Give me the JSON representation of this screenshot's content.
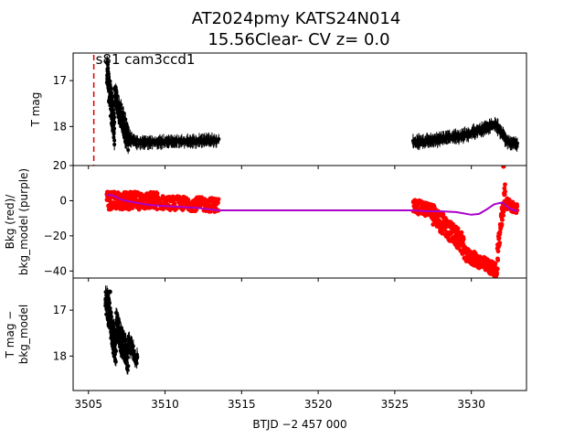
{
  "title_line1": "AT2024pmy  KATS24N014",
  "title_line2": "15.56Clear- CV z= 0.0",
  "chart_data": {
    "type": "scatter",
    "xlabel": "BTJD −2 457 000",
    "xlim": [
      3504.0,
      3533.6
    ],
    "x_ticks": [
      3505,
      3510,
      3515,
      3520,
      3525,
      3530
    ],
    "x_tick_labels": [
      "3505",
      "3510",
      "3515",
      "3520",
      "3525",
      "3530"
    ],
    "marker_line_x": 3505.35,
    "annotation": "s81 cam3ccd1",
    "panels": [
      {
        "id": "tmag",
        "ylabel": "T mag",
        "ylim": [
          16.4,
          18.85
        ],
        "y_inverted": true,
        "y_ticks": [
          17,
          18
        ],
        "y_tick_labels": [
          "17",
          "18"
        ],
        "colors": {
          "points": "#000000"
        },
        "segments": [
          {
            "x0": 3506.2,
            "x1": 3506.7,
            "y0": 16.75,
            "y1": 18.15,
            "spread": 0.35,
            "n": 120
          },
          {
            "x0": 3506.7,
            "x1": 3507.6,
            "y0": 17.3,
            "y1": 18.3,
            "spread": 0.25,
            "n": 100
          },
          {
            "x0": 3507.6,
            "x1": 3508.2,
            "y0": 18.25,
            "y1": 18.35,
            "spread": 0.05,
            "n": 40
          },
          {
            "x0": 3508.2,
            "x1": 3513.5,
            "y0": 18.35,
            "y1": 18.3,
            "spread": 0.03,
            "n": 160
          },
          {
            "x0": 3526.2,
            "x1": 3529.5,
            "y0": 18.35,
            "y1": 18.2,
            "spread": 0.04,
            "n": 130
          },
          {
            "x0": 3529.5,
            "x1": 3531.6,
            "y0": 18.2,
            "y1": 17.95,
            "spread": 0.04,
            "n": 90
          },
          {
            "x0": 3531.6,
            "x1": 3532.2,
            "y0": 17.95,
            "y1": 18.25,
            "spread": 0.06,
            "n": 30
          },
          {
            "x0": 3532.2,
            "x1": 3533.0,
            "y0": 18.3,
            "y1": 18.4,
            "spread": 0.04,
            "n": 30
          }
        ]
      },
      {
        "id": "bkg",
        "ylabel_line1": "Bkg (red)/",
        "ylabel_line2": "bkg_model (purple)",
        "ylim": [
          -44,
          20
        ],
        "y_inverted": false,
        "y_ticks": [
          20,
          0,
          -20,
          -40
        ],
        "y_tick_labels": [
          "20",
          "0",
          "−20",
          "−40"
        ],
        "colors": {
          "points": "#ff0000",
          "model": "#aa00cc"
        },
        "segments": [
          {
            "x0": 3506.2,
            "x1": 3509.5,
            "y0": 0.0,
            "y1": 0.0,
            "spread": 5.0,
            "n": 260
          },
          {
            "x0": 3509.5,
            "x1": 3513.5,
            "y0": -1.0,
            "y1": -2.5,
            "spread": 4.0,
            "n": 200
          },
          {
            "x0": 3526.2,
            "x1": 3527.5,
            "y0": -3.0,
            "y1": -6.0,
            "spread": 4.0,
            "n": 90
          },
          {
            "x0": 3527.5,
            "x1": 3529.5,
            "y0": -8.0,
            "y1": -25.0,
            "spread": 6.0,
            "n": 140
          },
          {
            "x0": 3529.5,
            "x1": 3531.7,
            "y0": -30.0,
            "y1": -40.0,
            "spread": 4.0,
            "n": 140
          },
          {
            "x0": 3531.7,
            "x1": 3532.2,
            "y0": -30.0,
            "y1": 5.0,
            "spread": 6.0,
            "n": 50
          },
          {
            "x0": 3532.2,
            "x1": 3533.0,
            "y0": -1.0,
            "y1": -5.0,
            "spread": 3.0,
            "n": 50
          }
        ],
        "outliers": [
          {
            "x": 3532.1,
            "y": 19.5
          }
        ],
        "model": {
          "x": [
            3506.2,
            3506.6,
            3507.2,
            3508.0,
            3509.0,
            3510.0,
            3511.0,
            3512.0,
            3513.0,
            3513.5,
            3526.2,
            3527.0,
            3528.0,
            3529.0,
            3530.0,
            3530.5,
            3531.0,
            3531.5,
            3532.0,
            3532.5,
            3533.0
          ],
          "y": [
            3.5,
            3.0,
            0.5,
            -1.0,
            -2.5,
            -3.0,
            -3.5,
            -4.0,
            -5.0,
            -5.5,
            -5.5,
            -6.0,
            -6.0,
            -6.5,
            -8.0,
            -7.5,
            -5.0,
            -2.0,
            -1.0,
            -4.5,
            -6.0
          ]
        }
      },
      {
        "id": "diff",
        "ylabel_line1": "T mag −",
        "ylabel_line2": "bkg_model",
        "ylim": [
          16.3,
          18.75
        ],
        "y_inverted": true,
        "y_ticks": [
          17,
          18
        ],
        "y_tick_labels": [
          "17",
          "18"
        ],
        "colors": {
          "points": "#000000"
        },
        "segments": [
          {
            "x0": 3506.1,
            "x1": 3506.8,
            "y0": 16.7,
            "y1": 17.9,
            "spread": 0.35,
            "n": 120
          },
          {
            "x0": 3506.8,
            "x1": 3507.6,
            "y0": 17.3,
            "y1": 18.1,
            "spread": 0.3,
            "n": 100
          },
          {
            "x0": 3507.6,
            "x1": 3508.2,
            "y0": 17.7,
            "y1": 18.1,
            "spread": 0.15,
            "n": 40
          }
        ],
        "outliers": [
          {
            "x": 3506.4,
            "y": 16.6
          }
        ]
      }
    ]
  }
}
